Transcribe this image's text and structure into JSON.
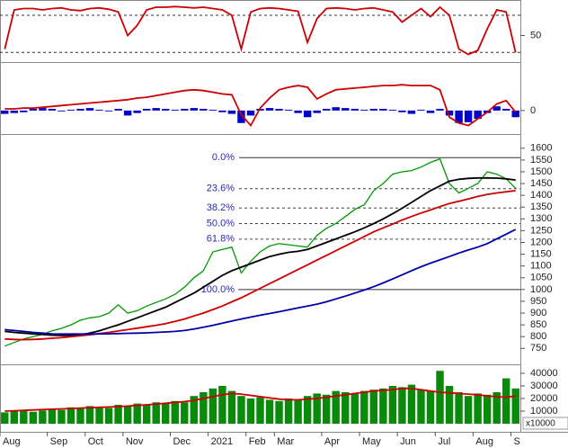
{
  "chart_data": [
    {
      "type": "line",
      "ylim": [
        12,
        100
      ],
      "yticks": [
        50
      ],
      "hlines": [
        80,
        25
      ],
      "series": [
        {
          "color": "#cc0000",
          "values": [
            30,
            88,
            90,
            90,
            88,
            90,
            91,
            88,
            87,
            90,
            91,
            89,
            85,
            50,
            65,
            88,
            92,
            92,
            93,
            92,
            91,
            92,
            90,
            88,
            80,
            30,
            85,
            90,
            91,
            90,
            88,
            86,
            40,
            75,
            90,
            91,
            90,
            88,
            90,
            91,
            88,
            85,
            70,
            80,
            90,
            78,
            92,
            80,
            30,
            22,
            28,
            60,
            88,
            85,
            25
          ]
        }
      ]
    },
    {
      "type": "line",
      "ylim": [
        -25,
        55
      ],
      "yticks": [
        0
      ],
      "series": [
        {
          "type": "bar",
          "color": "#0000cc",
          "values": [
            -4,
            -3,
            -2,
            2,
            3,
            2,
            -1,
            1,
            2,
            3,
            1,
            -1,
            2,
            -6,
            -3,
            2,
            3,
            2,
            1,
            2,
            3,
            2,
            1,
            -2,
            -4,
            -15,
            -6,
            2,
            3,
            2,
            1,
            -3,
            -8,
            -3,
            2,
            4,
            3,
            2,
            1,
            2,
            2,
            1,
            -2,
            -4,
            1,
            -3,
            2,
            -6,
            -15,
            -14,
            -10,
            -3,
            5,
            2,
            -8
          ]
        },
        {
          "type": "line",
          "color": "#cc0000",
          "values": [
            2,
            2,
            3,
            3,
            4,
            5,
            6,
            7,
            8,
            9,
            10,
            11,
            12,
            13,
            15,
            16,
            18,
            20,
            22,
            24,
            25,
            24,
            22,
            20,
            19,
            -5,
            -18,
            3,
            15,
            25,
            28,
            30,
            28,
            14,
            20,
            25,
            26,
            27,
            28,
            29,
            30,
            30,
            31,
            30,
            30,
            30,
            25,
            -8,
            -15,
            -18,
            -10,
            -2,
            8,
            12,
            -2
          ]
        }
      ]
    },
    {
      "type": "line",
      "ylim": [
        690,
        1645
      ],
      "yticks": [
        750,
        800,
        850,
        900,
        950,
        1000,
        1050,
        1100,
        1150,
        1200,
        1250,
        1300,
        1350,
        1400,
        1450,
        1500,
        1550,
        1600
      ],
      "fib_levels": [
        {
          "label": "0.0%",
          "value": 1560
        },
        {
          "label": "23.6%",
          "value": 1428
        },
        {
          "label": "38.2%",
          "value": 1346
        },
        {
          "label": "50.0%",
          "value": 1280
        },
        {
          "label": "61.8%",
          "value": 1214
        },
        {
          "label": "100.0%",
          "value": 1000
        }
      ],
      "series": [
        {
          "color": "#009900",
          "values": [
            760,
            775,
            790,
            800,
            810,
            825,
            835,
            850,
            870,
            880,
            885,
            900,
            935,
            900,
            910,
            930,
            945,
            960,
            980,
            1010,
            1050,
            1080,
            1160,
            1170,
            1180,
            1070,
            1120,
            1160,
            1185,
            1195,
            1190,
            1185,
            1180,
            1230,
            1260,
            1280,
            1310,
            1340,
            1360,
            1420,
            1450,
            1490,
            1500,
            1505,
            1520,
            1540,
            1555,
            1450,
            1410,
            1430,
            1450,
            1500,
            1490,
            1470,
            1430
          ]
        },
        {
          "color": "#000000",
          "values": [
            822,
            818,
            815,
            812,
            809,
            806,
            805,
            805,
            808,
            815,
            825,
            838,
            850,
            865,
            880,
            895,
            910,
            925,
            945,
            965,
            985,
            1010,
            1035,
            1060,
            1080,
            1095,
            1110,
            1125,
            1140,
            1150,
            1158,
            1162,
            1170,
            1185,
            1200,
            1215,
            1230,
            1245,
            1262,
            1280,
            1300,
            1322,
            1345,
            1370,
            1395,
            1420,
            1440,
            1460,
            1468,
            1472,
            1474,
            1474,
            1473,
            1470,
            1465
          ]
        },
        {
          "color": "#cc0000",
          "values": [
            790,
            788,
            787,
            788,
            790,
            793,
            796,
            800,
            804,
            808,
            813,
            818,
            824,
            830,
            836,
            842,
            848,
            855,
            865,
            875,
            888,
            900,
            915,
            930,
            948,
            965,
            985,
            1005,
            1025,
            1045,
            1065,
            1085,
            1105,
            1125,
            1145,
            1165,
            1185,
            1205,
            1225,
            1245,
            1262,
            1278,
            1295,
            1310,
            1325,
            1338,
            1352,
            1365,
            1375,
            1385,
            1395,
            1404,
            1410,
            1415,
            1420
          ]
        },
        {
          "color": "#0000aa",
          "values": [
            830,
            826,
            822,
            818,
            815,
            812,
            811,
            811,
            811,
            811,
            812,
            812,
            813,
            814,
            815,
            816,
            818,
            820,
            822,
            826,
            832,
            840,
            848,
            857,
            866,
            875,
            883,
            891,
            898,
            906,
            914,
            922,
            930,
            938,
            948,
            960,
            972,
            985,
            998,
            1012,
            1028,
            1045,
            1062,
            1080,
            1097,
            1112,
            1126,
            1140,
            1155,
            1168,
            1180,
            1195,
            1215,
            1235,
            1255
          ]
        }
      ]
    },
    {
      "type": "line",
      "ylim": [
        0,
        45000
      ],
      "yticks": [
        10000,
        20000,
        30000,
        40000
      ],
      "unit_label": "x10000",
      "categories": [
        "Aug",
        null,
        null,
        null,
        null,
        "Sep",
        null,
        null,
        null,
        "Oct",
        null,
        null,
        null,
        "Nov",
        null,
        null,
        null,
        null,
        "Dec",
        null,
        null,
        null,
        "2021",
        null,
        null,
        null,
        "Feb",
        null,
        null,
        "Mar",
        null,
        null,
        null,
        null,
        "Apr",
        null,
        null,
        null,
        "May",
        null,
        null,
        null,
        "Jun",
        null,
        null,
        null,
        "Jul",
        null,
        null,
        null,
        "Aug",
        null,
        null,
        null,
        "S"
      ],
      "series": [
        {
          "type": "bar",
          "color": "#0a8a0a",
          "values": [
            9000,
            10000,
            11000,
            9500,
            10500,
            12000,
            11000,
            13000,
            12000,
            14000,
            13000,
            12500,
            15000,
            14000,
            16000,
            15000,
            17000,
            16000,
            18000,
            17000,
            22000,
            25000,
            28000,
            30000,
            26000,
            22000,
            20000,
            21000,
            19000,
            18000,
            20000,
            19000,
            22000,
            24000,
            23000,
            26000,
            25000,
            24000,
            26000,
            27000,
            28000,
            30000,
            29000,
            31000,
            27000,
            26000,
            42000,
            30000,
            25000,
            22000,
            24000,
            23000,
            25000,
            36000,
            28000
          ]
        },
        {
          "type": "line",
          "color": "#cc0000",
          "values": [
            10000,
            10300,
            10600,
            10900,
            11200,
            11500,
            11800,
            12100,
            12400,
            12700,
            13000,
            13300,
            13600,
            14000,
            14500,
            15000,
            15600,
            16200,
            16900,
            17600,
            18500,
            20000,
            21500,
            23000,
            24000,
            23500,
            22500,
            21500,
            20500,
            19500,
            19000,
            19000,
            19500,
            20000,
            21000,
            22000,
            23000,
            24000,
            25000,
            26000,
            26500,
            27000,
            28000,
            28000,
            27000,
            26000,
            25000,
            24500,
            24000,
            23500,
            23000,
            22000,
            21500,
            21000,
            22000
          ]
        }
      ]
    }
  ]
}
